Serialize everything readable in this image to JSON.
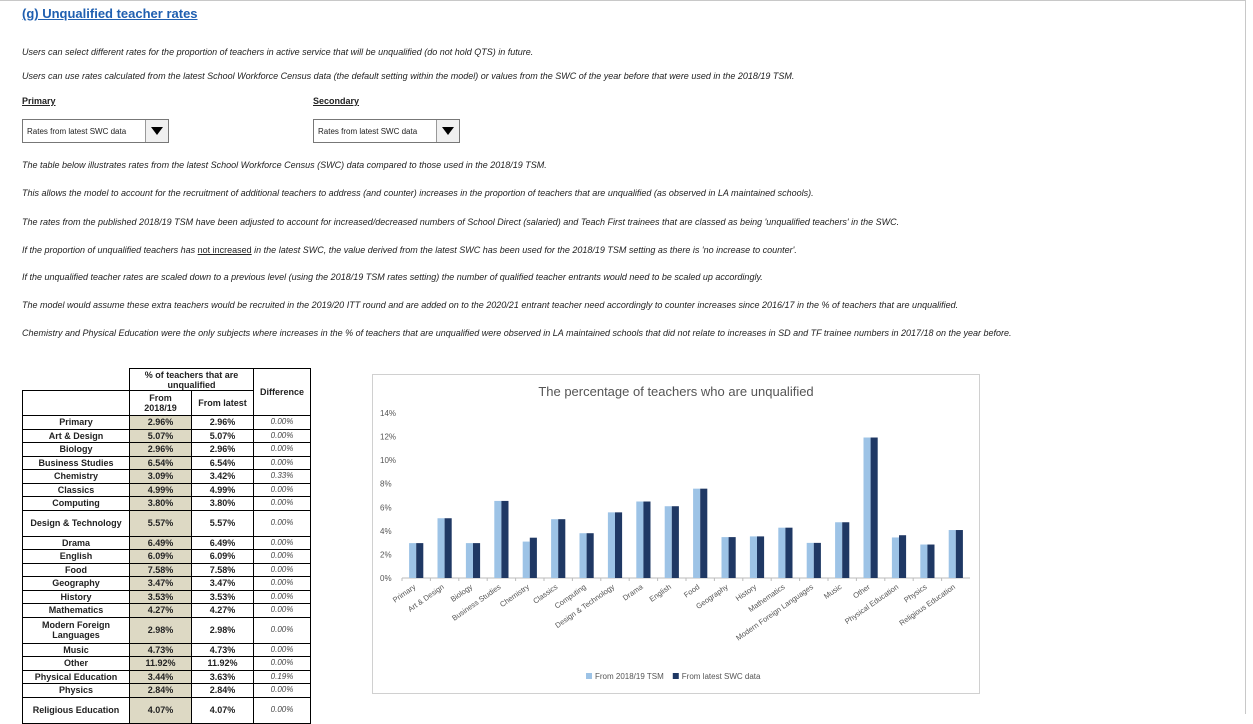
{
  "header": {
    "title": "(g) Unqualified teacher rates"
  },
  "intro": [
    "Users can select different rates for the proportion of teachers in active service that will be unqualified (do not hold QTS) in future.",
    "Users can use rates calculated from the latest School Workforce Census data (the default setting within the model) or values from the SWC of the year before that were used in the 2018/19 TSM."
  ],
  "selectors": [
    {
      "label": "Primary",
      "value": "Rates from latest SWC data"
    },
    {
      "label": "Secondary",
      "value": "Rates from latest SWC data"
    }
  ],
  "notes": [
    "The table below illustrates rates from the latest School Workforce Census (SWC) data compared to those used in the 2018/19 TSM.",
    "This allows the model to account for the recruitment of additional teachers to address (and counter) increases in the proportion of teachers that are unqualified (as observed in LA maintained schools).",
    "The rates from the published 2018/19 TSM have been adjusted to account for increased/decreased numbers of School Direct (salaried) and Teach First trainees that are classed as being 'unqualified teachers' in the SWC.",
    {
      "before": "If the proportion of unqualified teachers has ",
      "underlined": "not increased",
      "after": " in the latest SWC, the value derived from the latest SWC has been used for the 2018/19 TSM setting as there is 'no increase to counter'."
    },
    "If the unqualified teacher rates are scaled down to a previous level (using the 2018/19 TSM rates setting) the number of qualified teacher entrants would need to be scaled up accordingly.",
    "The model would assume these extra teachers would be recruited in the 2019/20 ITT round and are added on to the 2020/21 entrant teacher need accordingly to counter increases since 2016/17 in the % of teachers that are unqualified.",
    "Chemistry and Physical Education were the only subjects where increases in the % of teachers that are unqualified were observed in LA maintained schools that did not relate to increases in SD and TF trainee numbers in 2017/18 on the year before."
  ],
  "table": {
    "group_header": "% of teachers that are unqualified",
    "columns": [
      "From 2018/19",
      "From latest",
      "Difference"
    ],
    "rows": [
      [
        "Primary",
        "2.96%",
        "2.96%",
        "0.00%"
      ],
      [
        "Art & Design",
        "5.07%",
        "5.07%",
        "0.00%"
      ],
      [
        "Biology",
        "2.96%",
        "2.96%",
        "0.00%"
      ],
      [
        "Business Studies",
        "6.54%",
        "6.54%",
        "0.00%"
      ],
      [
        "Chemistry",
        "3.09%",
        "3.42%",
        "0.33%"
      ],
      [
        "Classics",
        "4.99%",
        "4.99%",
        "0.00%"
      ],
      [
        "Computing",
        "3.80%",
        "3.80%",
        "0.00%"
      ],
      [
        "Design & Technology",
        "5.57%",
        "5.57%",
        "0.00%"
      ],
      [
        "Drama",
        "6.49%",
        "6.49%",
        "0.00%"
      ],
      [
        "English",
        "6.09%",
        "6.09%",
        "0.00%"
      ],
      [
        "Food",
        "7.58%",
        "7.58%",
        "0.00%"
      ],
      [
        "Geography",
        "3.47%",
        "3.47%",
        "0.00%"
      ],
      [
        "History",
        "3.53%",
        "3.53%",
        "0.00%"
      ],
      [
        "Mathematics",
        "4.27%",
        "4.27%",
        "0.00%"
      ],
      [
        "Modern Foreign Languages",
        "2.98%",
        "2.98%",
        "0.00%"
      ],
      [
        "Music",
        "4.73%",
        "4.73%",
        "0.00%"
      ],
      [
        "Other",
        "11.92%",
        "11.92%",
        "0.00%"
      ],
      [
        "Physical Education",
        "3.44%",
        "3.63%",
        "0.19%"
      ],
      [
        "Physics",
        "2.84%",
        "2.84%",
        "0.00%"
      ],
      [
        "Religious Education",
        "4.07%",
        "4.07%",
        "0.00%"
      ]
    ]
  },
  "chart_data": {
    "type": "bar",
    "title": "The percentage of teachers who are unqualified",
    "categories": [
      "Primary",
      "Art & Design",
      "Biology",
      "Business Studies",
      "Chemistry",
      "Classics",
      "Computing",
      "Design & Technology",
      "Drama",
      "English",
      "Food",
      "Geography",
      "History",
      "Mathematics",
      "Modern Foreign Languages",
      "Music",
      "Other",
      "Physical Education",
      "Physics",
      "Religious Education"
    ],
    "series": [
      {
        "name": "From 2018/19 TSM",
        "color": "#9dc3e6",
        "values": [
          2.96,
          5.07,
          2.96,
          6.54,
          3.09,
          4.99,
          3.8,
          5.57,
          6.49,
          6.09,
          7.58,
          3.47,
          3.53,
          4.27,
          2.98,
          4.73,
          11.92,
          3.44,
          2.84,
          4.07
        ]
      },
      {
        "name": "From latest SWC data",
        "color": "#1f3864",
        "values": [
          2.96,
          5.07,
          2.96,
          6.54,
          3.42,
          4.99,
          3.8,
          5.57,
          6.49,
          6.09,
          7.58,
          3.47,
          3.53,
          4.27,
          2.98,
          4.73,
          11.92,
          3.63,
          2.84,
          4.07
        ]
      }
    ],
    "ylim": [
      0,
      14
    ],
    "yticks": [
      {
        "value": 0,
        "label": "0%"
      },
      {
        "value": 2,
        "label": "2%"
      },
      {
        "value": 4,
        "label": "4%"
      },
      {
        "value": 6,
        "label": "6%"
      },
      {
        "value": 8,
        "label": "8%"
      },
      {
        "value": 10,
        "label": "10%"
      },
      {
        "value": 12,
        "label": "12%"
      },
      {
        "value": 14,
        "label": "14%"
      }
    ],
    "grid": false,
    "legend": "bottom"
  }
}
